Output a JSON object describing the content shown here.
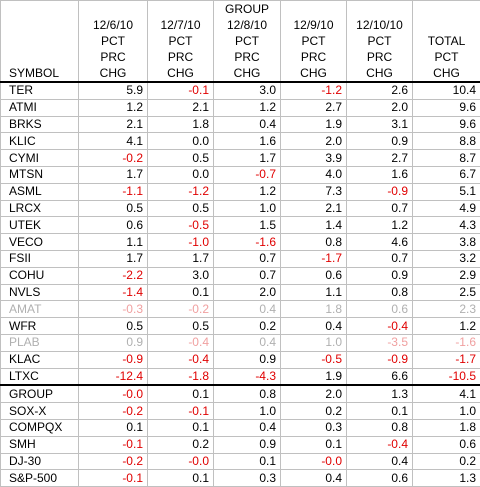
{
  "header": {
    "columns": [
      [
        "SYMBOL"
      ],
      [
        "12/6/10",
        "PCT",
        "PRC",
        "CHG"
      ],
      [
        "12/7/10",
        "PCT",
        "PRC",
        "CHG"
      ],
      [
        "GROUP",
        "12/8/10",
        "PCT",
        "PRC",
        "CHG"
      ],
      [
        "12/9/10",
        "PCT",
        "PRC",
        "CHG"
      ],
      [
        "12/10/10",
        "PCT",
        "PRC",
        "CHG"
      ],
      [
        "TOTAL",
        "PCT",
        "CHG"
      ]
    ]
  },
  "table": {
    "rows": [
      [
        "TER",
        "5.9",
        "-0.1",
        "3.0",
        "-1.2",
        "2.6",
        "10.4"
      ],
      [
        "ATMI",
        "1.2",
        "2.1",
        "1.2",
        "2.7",
        "2.0",
        "9.6"
      ],
      [
        "BRKS",
        "2.1",
        "1.8",
        "0.4",
        "1.9",
        "3.1",
        "9.6"
      ],
      [
        "KLIC",
        "4.1",
        "0.0",
        "1.6",
        "2.0",
        "0.9",
        "8.8"
      ],
      [
        "CYMI",
        "-0.2",
        "0.5",
        "1.7",
        "3.9",
        "2.7",
        "8.7"
      ],
      [
        "MTSN",
        "1.7",
        "0.0",
        "-0.7",
        "4.0",
        "1.6",
        "6.7"
      ],
      [
        "ASML",
        "-1.1",
        "-1.2",
        "1.2",
        "7.3",
        "-0.9",
        "5.1"
      ],
      [
        "LRCX",
        "0.5",
        "0.5",
        "1.0",
        "2.1",
        "0.7",
        "4.9"
      ],
      [
        "UTEK",
        "0.6",
        "-0.5",
        "1.5",
        "1.4",
        "1.2",
        "4.3"
      ],
      [
        "VECO",
        "1.1",
        "-1.0",
        "-1.6",
        "0.8",
        "4.6",
        "3.8"
      ],
      [
        "FSII",
        "1.7",
        "1.7",
        "0.7",
        "-1.7",
        "0.7",
        "3.2"
      ],
      [
        "COHU",
        "-2.2",
        "3.0",
        "0.7",
        "0.6",
        "0.9",
        "2.9"
      ],
      [
        "NVLS",
        "-1.4",
        "0.1",
        "2.0",
        "1.1",
        "0.8",
        "2.5"
      ],
      [
        "AMAT",
        "-0.3",
        "-0.2",
        "0.4",
        "1.8",
        "0.6",
        "2.3"
      ],
      [
        "WFR",
        "0.5",
        "0.5",
        "0.2",
        "0.4",
        "-0.4",
        "1.2"
      ],
      [
        "PLAB",
        "0.9",
        "-0.4",
        "0.4",
        "1.0",
        "-3.5",
        "-1.6"
      ],
      [
        "KLAC",
        "-0.9",
        "-0.4",
        "0.9",
        "-0.5",
        "-0.9",
        "-1.7"
      ],
      [
        "LTXC",
        "-12.4",
        "-1.8",
        "-4.3",
        "1.9",
        "6.6",
        "-10.5"
      ],
      [
        "GROUP",
        "-0.0",
        "0.1",
        "0.8",
        "2.0",
        "1.3",
        "4.1"
      ],
      [
        "SOX-X",
        "-0.2",
        "-0.1",
        "1.0",
        "0.2",
        "0.1",
        "1.0"
      ],
      [
        "COMPQX",
        "0.1",
        "0.1",
        "0.4",
        "0.3",
        "0.8",
        "1.8"
      ],
      [
        "SMH",
        "-0.1",
        "0.2",
        "0.9",
        "0.1",
        "-0.4",
        "0.6"
      ],
      [
        "DJ-30",
        "-0.2",
        "-0.0",
        "0.1",
        "-0.0",
        "0.4",
        "0.2"
      ],
      [
        "S&P-500",
        "-0.1",
        "0.1",
        "0.3",
        "0.4",
        "0.6",
        "1.3"
      ]
    ]
  }
}
